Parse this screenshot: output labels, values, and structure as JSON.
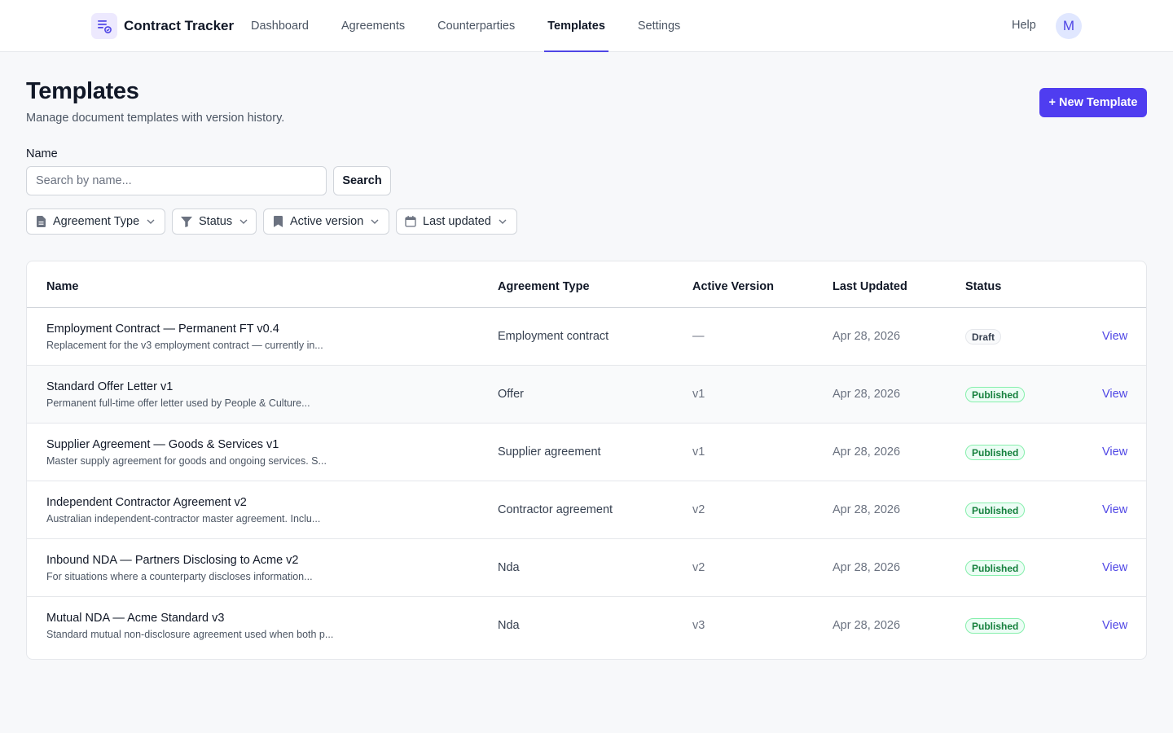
{
  "app": {
    "title": "Contract Tracker"
  },
  "nav": {
    "items": [
      {
        "label": "Dashboard",
        "active": false
      },
      {
        "label": "Agreements",
        "active": false
      },
      {
        "label": "Counterparties",
        "active": false
      },
      {
        "label": "Templates",
        "active": true
      },
      {
        "label": "Settings",
        "active": false
      }
    ],
    "help": "Help",
    "avatar_initial": "M"
  },
  "header": {
    "title": "Templates",
    "subtitle": "Manage document templates with version history.",
    "new_button": "+ New Template"
  },
  "search": {
    "label": "Name",
    "placeholder": "Search by name...",
    "value": "",
    "button": "Search"
  },
  "filters": [
    {
      "label": "Agreement Type",
      "icon": "document-icon"
    },
    {
      "label": "Status",
      "icon": "filter-icon"
    },
    {
      "label": "Active version",
      "icon": "bookmark-icon"
    },
    {
      "label": "Last updated",
      "icon": "calendar-icon"
    }
  ],
  "table": {
    "headers": {
      "name": "Name",
      "type": "Agreement Type",
      "version": "Active Version",
      "updated": "Last Updated",
      "status": "Status"
    },
    "rows": [
      {
        "name": "Employment Contract — Permanent FT v0.4",
        "description": "Replacement for the v3 employment contract — currently in...",
        "type": "Employment contract",
        "version": "—",
        "updated": "Apr 28, 2026",
        "status": "Draft",
        "action": "View"
      },
      {
        "name": "Standard Offer Letter v1",
        "description": "Permanent full-time offer letter used by People & Culture...",
        "type": "Offer",
        "version": "v1",
        "updated": "Apr 28, 2026",
        "status": "Published",
        "action": "View"
      },
      {
        "name": "Supplier Agreement — Goods & Services v1",
        "description": "Master supply agreement for goods and ongoing services. S...",
        "type": "Supplier agreement",
        "version": "v1",
        "updated": "Apr 28, 2026",
        "status": "Published",
        "action": "View"
      },
      {
        "name": "Independent Contractor Agreement v2",
        "description": "Australian independent-contractor master agreement. Inclu...",
        "type": "Contractor agreement",
        "version": "v2",
        "updated": "Apr 28, 2026",
        "status": "Published",
        "action": "View"
      },
      {
        "name": "Inbound NDA — Partners Disclosing to Acme v2",
        "description": "For situations where a counterparty discloses information...",
        "type": "Nda",
        "version": "v2",
        "updated": "Apr 28, 2026",
        "status": "Published",
        "action": "View"
      },
      {
        "name": "Mutual NDA — Acme Standard v3",
        "description": "Standard mutual non-disclosure agreement used when both p...",
        "type": "Nda",
        "version": "v3",
        "updated": "Apr 28, 2026",
        "status": "Published",
        "action": "View"
      }
    ]
  },
  "colors": {
    "accent": "#4f46e5",
    "primary_button": "#4f3df0",
    "published": "#15803d",
    "published_bg": "#ecfdf5"
  }
}
